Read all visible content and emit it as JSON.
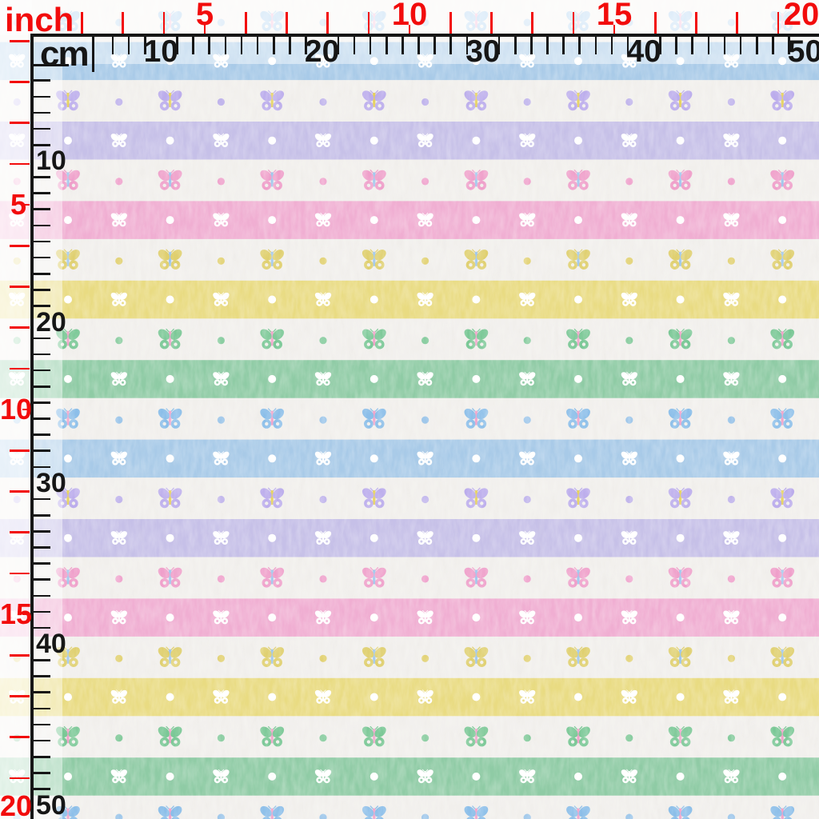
{
  "preview": {
    "type_note": "fabric swatch preview with measurement rulers"
  },
  "rulers": {
    "inch": {
      "unit_label": "inch",
      "color": "#F20C0C",
      "top_numbers": [
        5,
        10,
        15,
        20
      ],
      "left_numbers": [
        5,
        10,
        15,
        20
      ],
      "max": 20
    },
    "cm": {
      "unit_label": "cm",
      "color": "#161616",
      "top_numbers": [
        10,
        20,
        30,
        40,
        50
      ],
      "left_numbers": [
        10,
        20,
        30,
        40,
        50
      ],
      "max": 50
    }
  },
  "pattern": {
    "background": "#F1EFEC",
    "white_motif": "#FFFFFF",
    "stripe_cycle": [
      "blue",
      "purple",
      "pink",
      "yellow",
      "green"
    ],
    "colors": {
      "blue": {
        "stripe": "#A8CAE8",
        "butterfly": "#8BBEE9",
        "dot": "#9DC6EA",
        "body": "#F0A2C9"
      },
      "purple": {
        "stripe": "#C6C0E8",
        "butterfly": "#BBACEC",
        "dot": "#C0B4EC",
        "body": "#E5D05C"
      },
      "pink": {
        "stripe": "#F0AED2",
        "butterfly": "#EF9FCA",
        "dot": "#F0A5CE",
        "body": "#9FC6EC"
      },
      "yellow": {
        "stripe": "#E9DB82",
        "butterfly": "#DFCF6E",
        "dot": "#E2D275",
        "body": "#9FC6EC"
      },
      "green": {
        "stripe": "#8FCBA5",
        "butterfly": "#79C795",
        "dot": "#85CB9D",
        "body": "#F0A2C9"
      }
    }
  }
}
